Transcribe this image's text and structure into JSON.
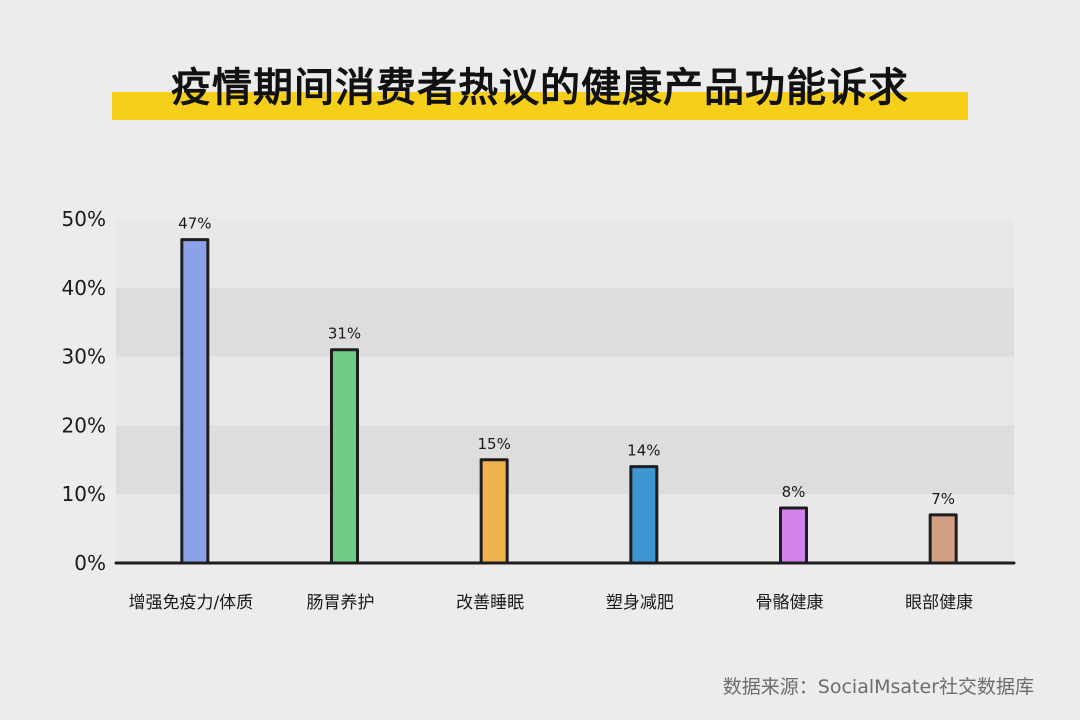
{
  "title": "疫情期间消费者热议的健康产品功能诉求",
  "source": "数据来源：SocialMsater社交数据库",
  "colors": {
    "background": "#ececec",
    "title_band": "#f5cf1a",
    "band_dark": "#dddddf",
    "band_light": "#e8e8e9",
    "bar_outline": "#1e1e1e"
  },
  "chart_data": {
    "type": "bar",
    "title": "疫情期间消费者热议的健康产品功能诉求",
    "categories": [
      "增强免疫力/体质",
      "肠胃养护",
      "改善睡眠",
      "塑身减肥",
      "骨骼健康",
      "眼部健康"
    ],
    "values": [
      47,
      31,
      15,
      14,
      8,
      7
    ],
    "value_labels": [
      "47%",
      "31%",
      "15%",
      "14%",
      "8%",
      "7%"
    ],
    "bar_colors": [
      "#8ca2e8",
      "#6fcd86",
      "#f0b24e",
      "#3e97d3",
      "#d183eb",
      "#d29f82"
    ],
    "ylim": [
      0,
      50
    ],
    "yticks": [
      0,
      10,
      20,
      30,
      40,
      50
    ],
    "ytick_labels": [
      "0%",
      "10%",
      "20%",
      "30%",
      "40%",
      "50%"
    ],
    "xlabel": "",
    "ylabel": "",
    "grid": "alternating horizontal bands",
    "legend": "none"
  }
}
